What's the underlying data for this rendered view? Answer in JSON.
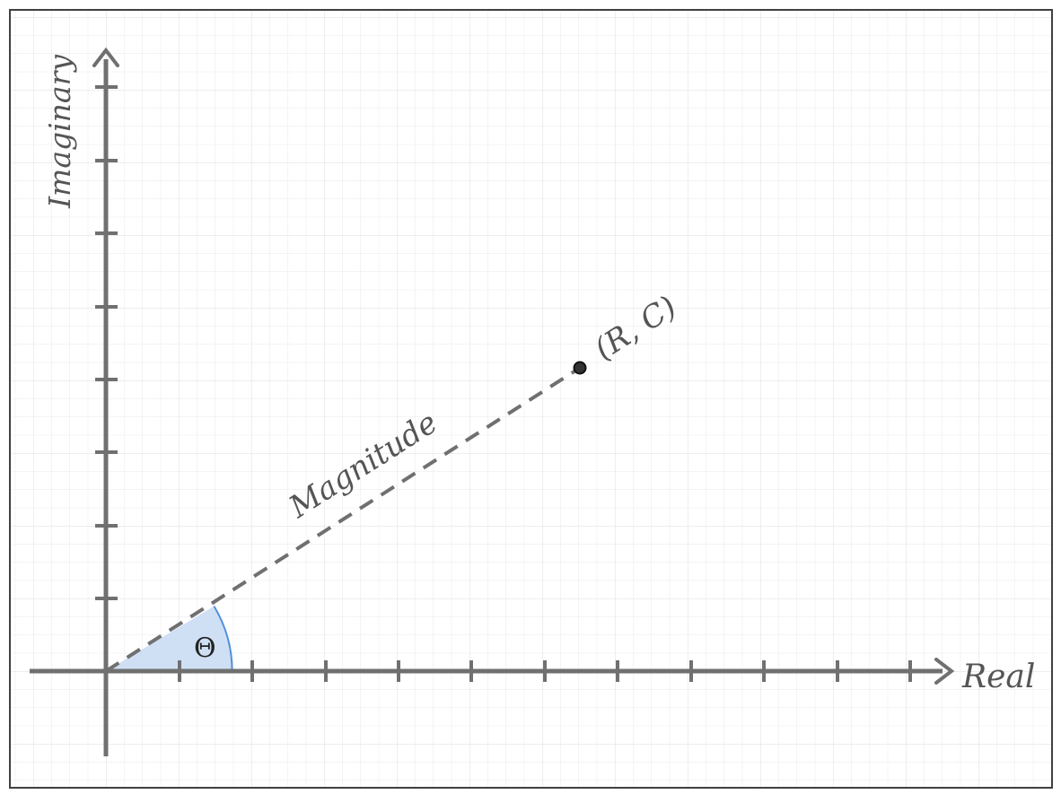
{
  "diagram": {
    "axes": {
      "x_label": "Real",
      "y_label": "Imaginary"
    },
    "vector": {
      "label": "Magnitude",
      "point_label": "(R, C)"
    },
    "angle": {
      "label": "Θ"
    },
    "colors": {
      "axis": "#707070",
      "grid_minor": "#e9e9e9",
      "grid_major": "#dcdcdc",
      "angle_fill": "#cfe0f5",
      "angle_arc": "#4f8fe0",
      "frame": "#404040",
      "point": "#333333"
    }
  }
}
